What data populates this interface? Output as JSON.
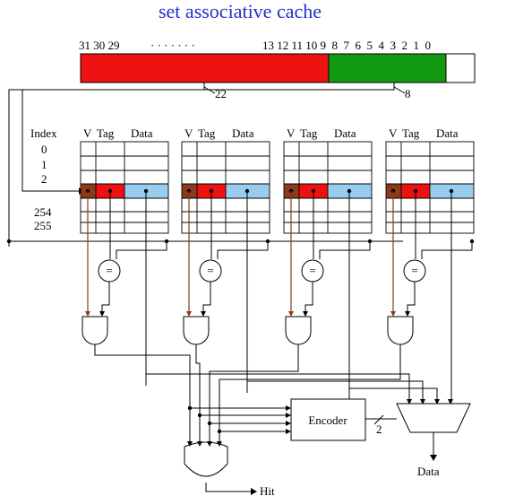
{
  "title": "set associative cache",
  "address_bits": {
    "left": "31 30 29",
    "dots": "· · · · · · ·",
    "right": "13 12 11 10 9  8  7  6  5  4  3  2  1  0",
    "tag_width": "22",
    "index_width": "8",
    "tag_color": "#ee1111",
    "index_color": "#119911",
    "offset_color": "#ffffff"
  },
  "index_labels": [
    "Index",
    "0",
    "1",
    "2",
    "254",
    "255"
  ],
  "way_headers": {
    "v": "V",
    "tag": "Tag",
    "data": "Data"
  },
  "colors": {
    "valid": "#8b3a1a",
    "tag": "#ee1111",
    "data": "#99ccee",
    "bus": "#8b3a1a"
  },
  "comparator_label": "=",
  "encoder_label": "Encoder",
  "encoder_width": "2",
  "output_data_label": "Data",
  "hit_label": "Hit",
  "ways": 4
}
